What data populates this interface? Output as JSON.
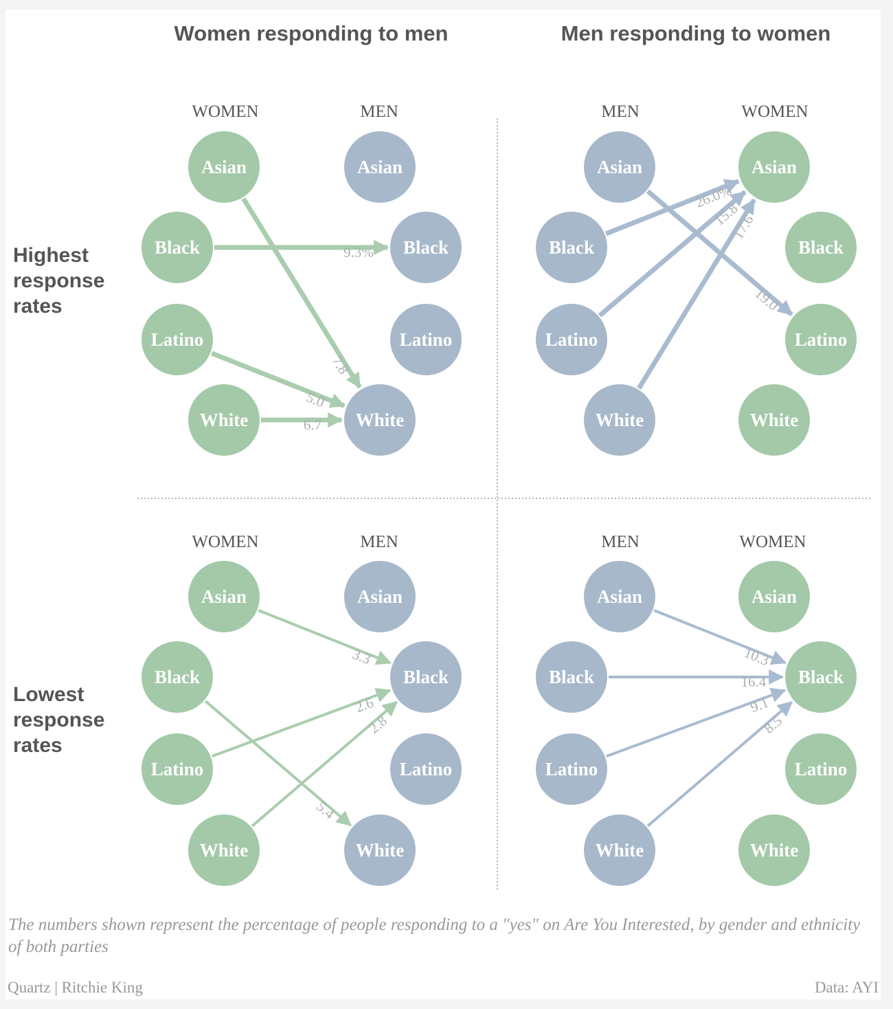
{
  "titles": {
    "left": "Women responding to men",
    "right": "Men responding to women"
  },
  "row_labels": {
    "top": "Highest response rates",
    "bottom": "Lowest response rates"
  },
  "column_headers": {
    "women": "WOMEN",
    "men": "MEN"
  },
  "footnote": "The numbers shown represent the percentage of people responding to a \"yes\" on Are You Interested, by gender and ethnicity of both parties",
  "credit": "Quartz | Ritchie King",
  "source": "Data: AYI",
  "colors": {
    "women": "#a3c9a8",
    "men": "#a7b8cb",
    "women_arrow": "#a9cdae",
    "men_arrow": "#a9bbd0",
    "circle_text": "#ffffff",
    "value_label": "#a9b0ae"
  },
  "chart_data": [
    {
      "type": "flow",
      "panel": "Women responding to men — Highest response rates",
      "responder": "women",
      "receiver": "men",
      "ethnicities": [
        "Asian",
        "Black",
        "Latino",
        "White"
      ],
      "flows": [
        {
          "from": "Asian",
          "to": "White",
          "label": "7.8",
          "value": 7.8
        },
        {
          "from": "Black",
          "to": "Black",
          "label": "9.3%",
          "value": 9.3
        },
        {
          "from": "Latino",
          "to": "White",
          "label": "5.0",
          "value": 5.0
        },
        {
          "from": "White",
          "to": "White",
          "label": "6.7",
          "value": 6.7
        }
      ]
    },
    {
      "type": "flow",
      "panel": "Men responding to women — Highest response rates",
      "responder": "men",
      "receiver": "women",
      "ethnicities": [
        "Asian",
        "Black",
        "Latino",
        "White"
      ],
      "flows": [
        {
          "from": "Asian",
          "to": "Latino",
          "label": "19.0",
          "value": 19.0
        },
        {
          "from": "Black",
          "to": "Asian",
          "label": "26.0%",
          "value": 26.0
        },
        {
          "from": "Latino",
          "to": "Asian",
          "label": "15.8",
          "value": 15.8
        },
        {
          "from": "White",
          "to": "Asian",
          "label": "17.6",
          "value": 17.6
        }
      ]
    },
    {
      "type": "flow",
      "panel": "Women responding to men — Lowest response rates",
      "responder": "women",
      "receiver": "men",
      "ethnicities": [
        "Asian",
        "Black",
        "Latino",
        "White"
      ],
      "flows": [
        {
          "from": "Asian",
          "to": "Black",
          "label": "3.3",
          "value": 3.3
        },
        {
          "from": "Black",
          "to": "White",
          "label": "5.4",
          "value": 5.4
        },
        {
          "from": "Latino",
          "to": "Black",
          "label": "2.6",
          "value": 2.6
        },
        {
          "from": "White",
          "to": "Black",
          "label": "2.8",
          "value": 2.8
        }
      ]
    },
    {
      "type": "flow",
      "panel": "Men responding to women — Lowest response rates",
      "responder": "men",
      "receiver": "women",
      "ethnicities": [
        "Asian",
        "Black",
        "Latino",
        "White"
      ],
      "flows": [
        {
          "from": "Asian",
          "to": "Black",
          "label": "10.3",
          "value": 10.3
        },
        {
          "from": "Black",
          "to": "Black",
          "label": "16.4",
          "value": 16.4
        },
        {
          "from": "Latino",
          "to": "Black",
          "label": "9.1",
          "value": 9.1
        },
        {
          "from": "White",
          "to": "Black",
          "label": "8.5",
          "value": 8.5
        }
      ]
    }
  ]
}
